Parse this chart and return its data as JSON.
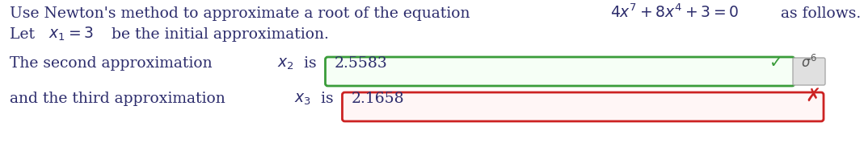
{
  "background_color": "#ffffff",
  "text_color": "#2c2c6c",
  "line1a": "Use Newton's method to approximate a root of the equation ",
  "line1b": "$4x^7 + 8x^4 + 3 = 0$",
  "line1c": " as follows.",
  "line2a": "Let ",
  "line2b": "$x_1 = 3$",
  "line2c": " be the initial approximation.",
  "row1a": "The second approximation ",
  "row1b": "$x_2$",
  "row1c": " is ",
  "row1_value": "2.5583",
  "row1_box_color": "#3a9c3a",
  "row1_face_color": "#f6fff6",
  "row1_check_color": "#3a9c3a",
  "row2a": "and the third approximation ",
  "row2b": "$x_3$",
  "row2c": " is ",
  "row2_value": "2.1658",
  "row2_box_color": "#cc2222",
  "row2_face_color": "#fff6f6",
  "row2_x_color": "#cc2222",
  "font_size": 13.5,
  "fig_width": 10.69,
  "fig_height": 1.93,
  "dpi": 100
}
